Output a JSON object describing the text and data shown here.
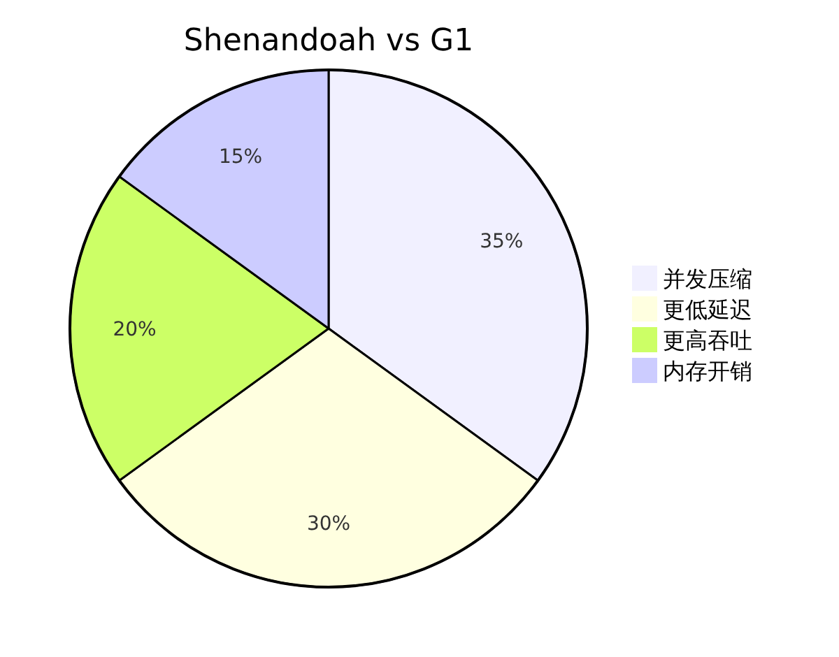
{
  "chart_data": {
    "type": "pie",
    "title": "Shenandoah vs G1",
    "categories": [
      "并发压缩",
      "更低延迟",
      "更高吞吐",
      "内存开销"
    ],
    "values": [
      35,
      30,
      20,
      15
    ],
    "colors": [
      "#f1f0ff",
      "#ffffe0",
      "#ccff66",
      "#ccccff"
    ],
    "value_labels": [
      "35%",
      "30%",
      "20%",
      "15%"
    ],
    "legend": "right"
  }
}
